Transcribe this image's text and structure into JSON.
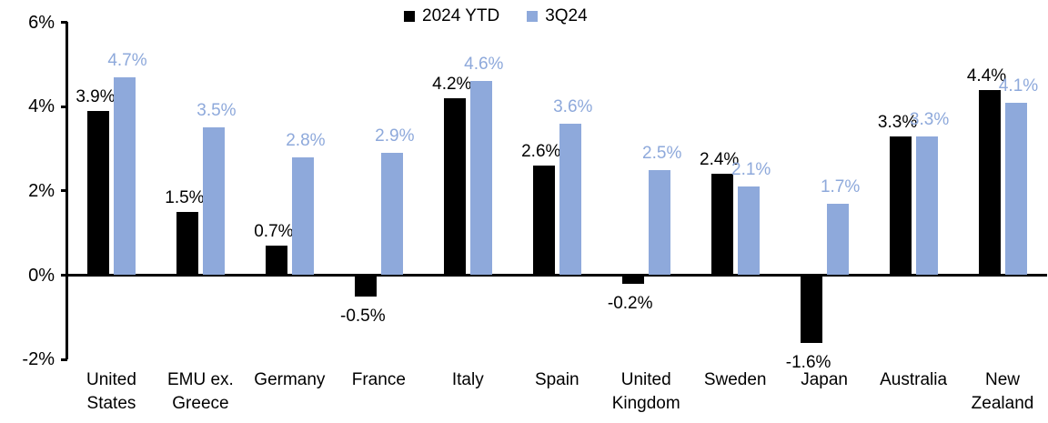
{
  "chart_data": {
    "type": "bar",
    "title": "",
    "xlabel": "",
    "ylabel": "",
    "ylim": [
      -2,
      6
    ],
    "grid": false,
    "legend_position": "top-center",
    "y_ticks": [
      {
        "value": 6,
        "label": "6%"
      },
      {
        "value": 4,
        "label": "4%"
      },
      {
        "value": 2,
        "label": "2%"
      },
      {
        "value": 0,
        "label": "0%"
      },
      {
        "value": -2,
        "label": "-2%"
      }
    ],
    "categories": [
      "United\nStates",
      "EMU ex.\nGreece",
      "Germany",
      "France",
      "Italy",
      "Spain",
      "United\nKingdom",
      "Sweden",
      "Japan",
      "Australia",
      "New\nZealand"
    ],
    "series": [
      {
        "name": "2024 YTD",
        "color": "#000000",
        "label_color": "#000000",
        "values": [
          3.9,
          1.5,
          0.7,
          -0.5,
          4.2,
          2.6,
          -0.2,
          2.4,
          -1.6,
          3.3,
          4.4
        ],
        "labels": [
          "3.9%",
          "1.5%",
          "0.7%",
          "-0.5%",
          "4.2%",
          "2.6%",
          "-0.2%",
          "2.4%",
          "-1.6%",
          "3.3%",
          "4.4%"
        ]
      },
      {
        "name": "3Q24",
        "color": "#8EA9DB",
        "label_color": "#8EA9DB",
        "values": [
          4.7,
          3.5,
          2.8,
          2.9,
          4.6,
          3.6,
          2.5,
          2.1,
          1.7,
          3.3,
          4.1
        ],
        "labels": [
          "4.7%",
          "3.5%",
          "2.8%",
          "2.9%",
          "4.6%",
          "3.6%",
          "2.5%",
          "2.1%",
          "1.7%",
          "3.3%",
          "4.1%"
        ]
      }
    ]
  }
}
